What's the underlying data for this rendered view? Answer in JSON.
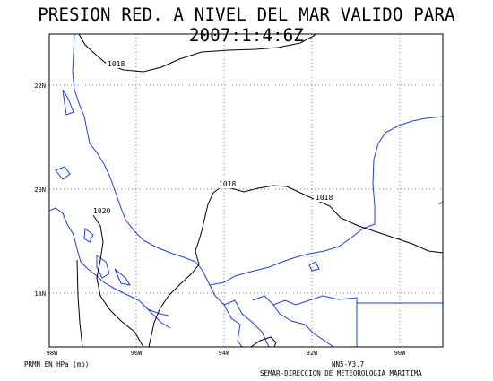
{
  "title": "PRESION RED. A NIVEL DEL MAR VALIDO PARA 2007:1:4:6Z",
  "lat_labels": [
    "22N",
    "20N",
    "18N"
  ],
  "lon_labels": [
    "98W",
    "96W",
    "94W",
    "92W",
    "90W"
  ],
  "isobar_labels": [
    "1018",
    "1018",
    "1018",
    "1020"
  ],
  "footer": {
    "units": "PRMN EN HPa (mb)",
    "version": "NN5-V3.7",
    "organization": "SEMAR-DIRECCION DE METEOROLOGIA MARITIMA"
  },
  "colors": {
    "coastline": "#1f3fd6",
    "isobar": "#000000",
    "grid": "#555555"
  }
}
